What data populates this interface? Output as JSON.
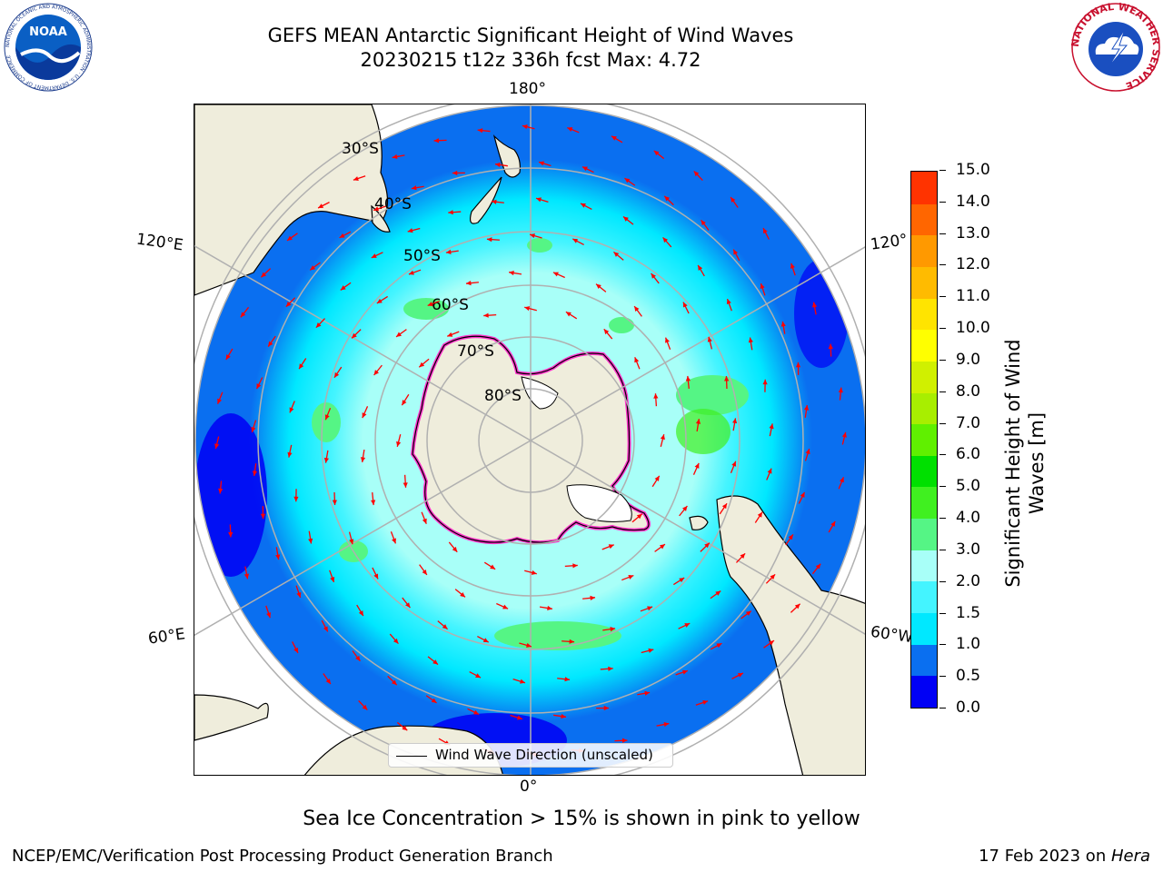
{
  "title": {
    "line1": "GEFS MEAN Antarctic Significant Height of Wind Waves",
    "line2": "20230215 t12z 336h fcst   Max: 4.72"
  },
  "logos": {
    "noaa": "NOAA",
    "noaa_ring": "NATIONAL OCEANIC AND ATMOSPHERIC ADMINISTRATION · U.S. DEPARTMENT OF COMMERCE",
    "nws_ring": "NATIONAL WEATHER SERVICE"
  },
  "map": {
    "projection": "south-polar-stereographic",
    "lon_labels": {
      "top": "180°",
      "bottom": "0°",
      "upper_left": "120°E",
      "upper_right": "120°",
      "lower_left": "60°E",
      "lower_right": "60°W"
    },
    "lat_labels": [
      "30°S",
      "40°S",
      "50°S",
      "60°S",
      "70°S",
      "80°S"
    ],
    "colors": {
      "land": "#efeddc",
      "coast": "#000000",
      "grid": "#b0b0b0",
      "ice": "#ff33cc",
      "arrow": "#ff0000"
    },
    "legend_label": "Wind Wave Direction (unscaled)"
  },
  "colorbar": {
    "label": "Significant Height of Wind Waves [m]",
    "label_line1": "Significant Height of Wind",
    "label_line2": "Waves [m]",
    "ticks": [
      "0.0",
      "0.5",
      "1.0",
      "1.5",
      "2.0",
      "3.0",
      "4.0",
      "5.0",
      "6.0",
      "7.0",
      "8.0",
      "9.0",
      "10.0",
      "11.0",
      "12.0",
      "13.0",
      "14.0",
      "15.0"
    ],
    "colors": [
      "#0000f5",
      "#0a6ff0",
      "#00e8ff",
      "#44f4ff",
      "#a8fff8",
      "#55f585",
      "#40f020",
      "#00e000",
      "#60f000",
      "#a8ee00",
      "#d0f000",
      "#ffff00",
      "#ffe400",
      "#ffbb00",
      "#ff9900",
      "#ff6600",
      "#ff3300"
    ]
  },
  "note": "Sea Ice Concentration > 15% is shown in pink to yellow",
  "footer": {
    "left": "NCEP/EMC/Verification Post Processing Product Generation Branch",
    "right_date": "17 Feb 2023 on ",
    "right_machine": "Hera"
  }
}
